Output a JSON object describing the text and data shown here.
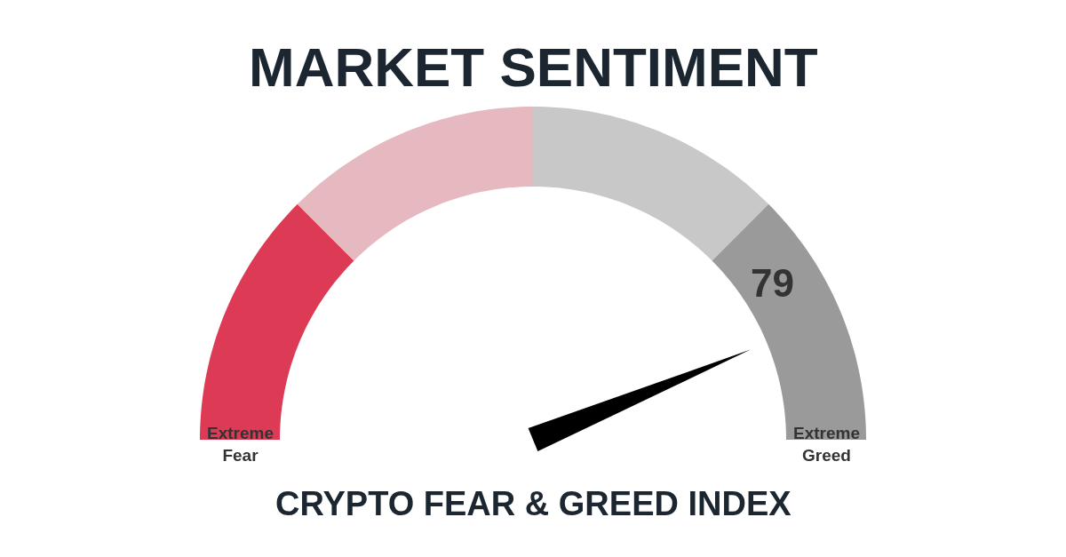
{
  "chart_data": {
    "type": "donut",
    "title": "MARKET SENTIMENT",
    "subtitle": "CRYPTO FEAR & GREED INDEX",
    "categories": [
      "Extreme Fear",
      null,
      null,
      "Extreme Greed"
    ],
    "values": [
      25,
      25,
      25,
      25
    ],
    "colors": [
      "#dc3a55",
      "#e6b8c0",
      "#c8c8c8",
      "#9a9a9a"
    ],
    "needle": "Extreme Greed",
    "annotations": [
      "79"
    ]
  }
}
